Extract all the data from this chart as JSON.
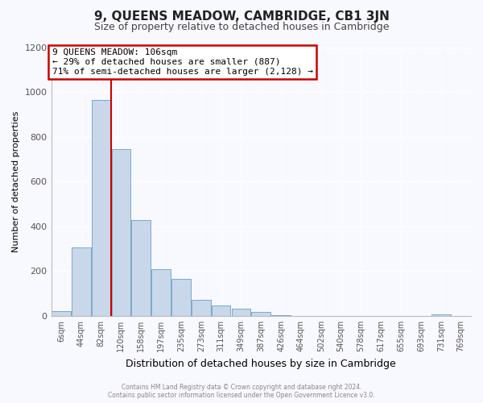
{
  "title": "9, QUEENS MEADOW, CAMBRIDGE, CB1 3JN",
  "subtitle": "Size of property relative to detached houses in Cambridge",
  "xlabel": "Distribution of detached houses by size in Cambridge",
  "ylabel": "Number of detached properties",
  "bin_labels": [
    "6sqm",
    "44sqm",
    "82sqm",
    "120sqm",
    "158sqm",
    "197sqm",
    "235sqm",
    "273sqm",
    "311sqm",
    "349sqm",
    "387sqm",
    "426sqm",
    "464sqm",
    "502sqm",
    "540sqm",
    "578sqm",
    "617sqm",
    "655sqm",
    "693sqm",
    "731sqm",
    "769sqm"
  ],
  "bar_heights": [
    20,
    305,
    965,
    745,
    430,
    210,
    165,
    72,
    47,
    33,
    18,
    5,
    0,
    0,
    0,
    0,
    0,
    0,
    0,
    8,
    0
  ],
  "bar_color": "#c8d8ea",
  "bar_edge_color": "#7aaac8",
  "vline_color": "#cc0000",
  "vline_x": 2.5,
  "annotation_text": "9 QUEENS MEADOW: 106sqm\n← 29% of detached houses are smaller (887)\n71% of semi-detached houses are larger (2,128) →",
  "annotation_box_color": "#ffffff",
  "annotation_box_edge_color": "#cc0000",
  "ylim": [
    0,
    1200
  ],
  "yticks": [
    0,
    200,
    400,
    600,
    800,
    1000,
    1200
  ],
  "footnote": "Contains HM Land Registry data © Crown copyright and database right 2024.\nContains public sector information licensed under the Open Government Licence v3.0.",
  "bg_color": "#f8f8ff",
  "title_fontsize": 11,
  "subtitle_fontsize": 9,
  "ylabel_fontsize": 8,
  "xlabel_fontsize": 9,
  "tick_fontsize": 7,
  "annotation_fontsize": 8,
  "footnote_fontsize": 5.5
}
